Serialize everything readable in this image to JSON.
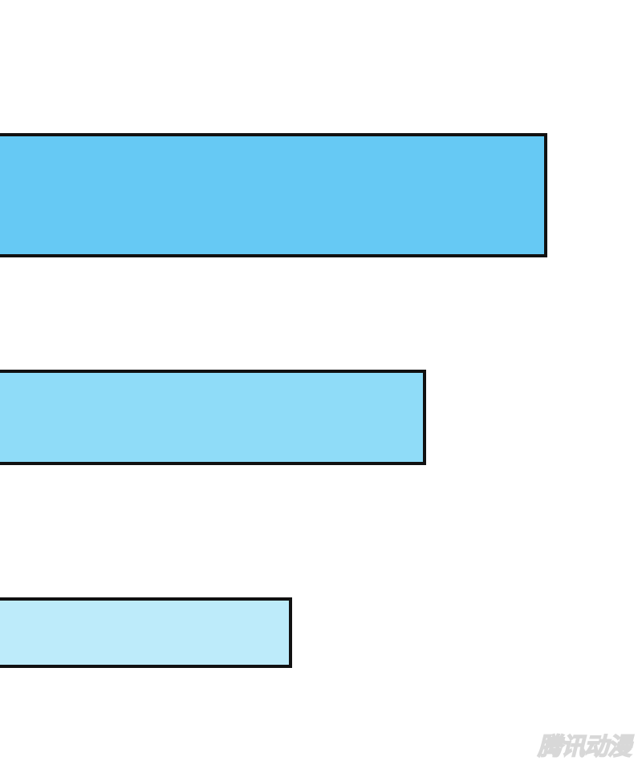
{
  "bars": [
    {
      "color": "#66C9F4"
    },
    {
      "color": "#8FDCF8"
    },
    {
      "color": "#BDEBFA"
    }
  ],
  "watermark": {
    "text": "腾讯动漫"
  }
}
